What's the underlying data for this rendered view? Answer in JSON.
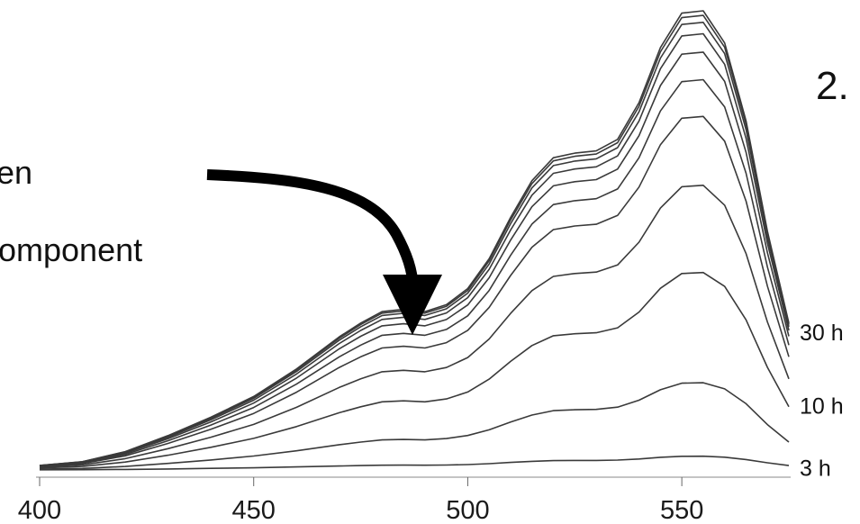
{
  "chart_data": {
    "type": "line",
    "title": "",
    "xlabel": "",
    "ylabel": "",
    "xlim": [
      400,
      575
    ],
    "ylim": [
      0,
      1
    ],
    "grid": false,
    "x_ticks": [
      400,
      450,
      500,
      550
    ],
    "x_tick_labels": [
      "400",
      "450",
      "500",
      "550"
    ],
    "x": [
      400,
      410,
      420,
      430,
      440,
      450,
      460,
      470,
      475,
      480,
      485,
      490,
      495,
      500,
      505,
      510,
      515,
      520,
      525,
      530,
      535,
      540,
      545,
      550,
      555,
      560,
      565,
      570,
      575
    ],
    "shape": [
      0.01,
      0.018,
      0.04,
      0.075,
      0.115,
      0.16,
      0.22,
      0.29,
      0.32,
      0.345,
      0.35,
      0.345,
      0.36,
      0.395,
      0.46,
      0.55,
      0.63,
      0.68,
      0.69,
      0.695,
      0.72,
      0.8,
      0.92,
      0.995,
      1.0,
      0.93,
      0.76,
      0.52,
      0.32
    ],
    "series": [
      {
        "peak": 0.03
      },
      {
        "peak": 0.19
      },
      {
        "peak": 0.43
      },
      {
        "peak": 0.62
      },
      {
        "peak": 0.77
      },
      {
        "peak": 0.85
      },
      {
        "peak": 0.91
      },
      {
        "peak": 0.95
      },
      {
        "peak": 0.975
      },
      {
        "peak": 0.99
      },
      {
        "peak": 1.0
      }
    ],
    "series_labels": [
      {
        "text": "30 h",
        "y": 0.3
      },
      {
        "text": "10 h",
        "y": 0.14
      },
      {
        "text": "3 h",
        "y": 0.005
      }
    ],
    "annotations": {
      "text_lines": [
        "en",
        "omponent"
      ],
      "corner_text": "2."
    },
    "colors": {
      "line": "#3a3a3a",
      "arrow": "#000000"
    }
  }
}
